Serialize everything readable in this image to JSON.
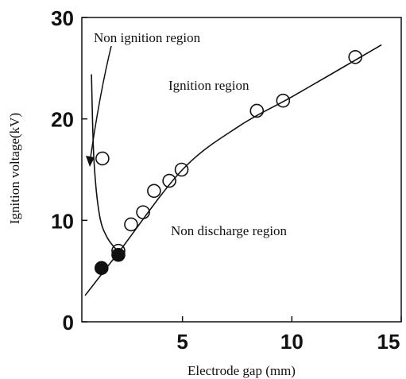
{
  "chart_data": {
    "type": "scatter",
    "xlabel": "Electrode gap (mm)",
    "ylabel": "Ignition voltage(kV)",
    "annotations": [
      "Non ignition region",
      "Ignition region",
      "Non discharge region"
    ],
    "xlim": [
      0.4,
      15
    ],
    "ylim": [
      0,
      30
    ],
    "xticks": [
      5,
      10,
      15
    ],
    "yticks": [
      0,
      10,
      20,
      30
    ],
    "color": "#111111",
    "series": [
      {
        "marker": "open",
        "x": [
          1.34,
          2.07,
          2.65,
          3.2,
          3.7,
          4.4,
          4.96,
          8.4,
          9.6,
          12.9
        ],
        "y": [
          16.1,
          7.0,
          9.6,
          10.8,
          12.9,
          13.9,
          15.0,
          20.8,
          21.8,
          26.1
        ]
      },
      {
        "marker": "filled",
        "x": [
          1.3,
          2.07
        ],
        "y": [
          5.3,
          6.6
        ]
      },
      {
        "marker": "line",
        "x": [
          0.55,
          2.1,
          5.0,
          7.6,
          10.1,
          14.1
        ],
        "y": [
          2.6,
          6.9,
          15.0,
          19.3,
          22.3,
          27.3
        ]
      },
      {
        "marker": "line",
        "x": [
          0.84,
          0.95,
          1.2,
          1.56,
          2.07
        ],
        "y": [
          24.4,
          16.1,
          10.6,
          8.3,
          6.9
        ]
      }
    ]
  }
}
